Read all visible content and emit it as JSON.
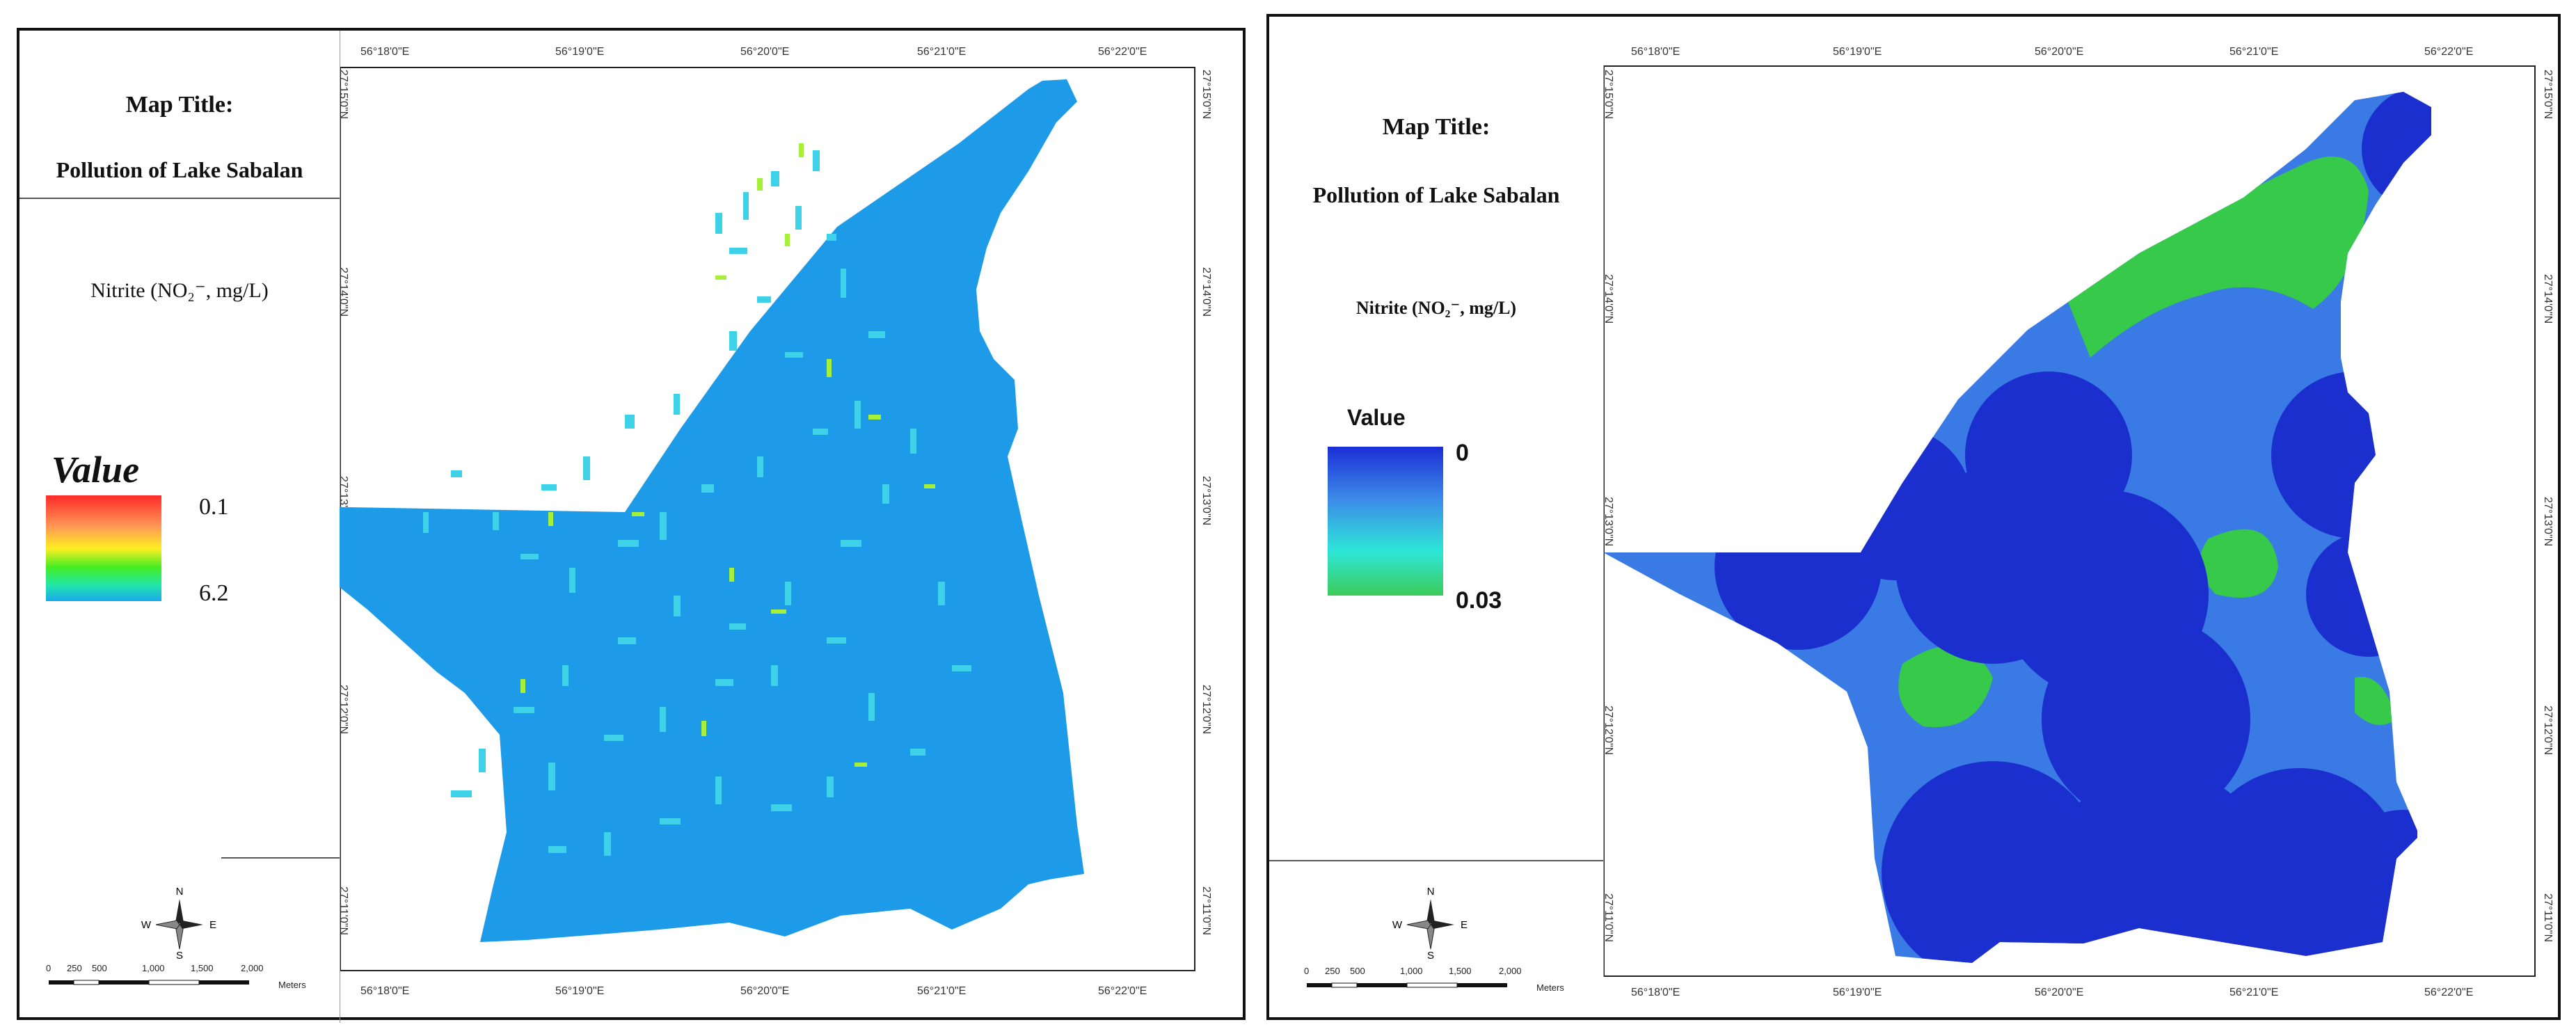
{
  "panels": [
    {
      "id": "left",
      "map_title_label": "Map Title:",
      "map_title": "Pollution of Lake Sabalan",
      "parameter": "Nitrite (NO₂⁻, mg/L)",
      "legend": {
        "heading": "Value",
        "top_value": "0.1",
        "bottom_value": "6.2",
        "ramp_colors": [
          "#ff2a2a",
          "#ff9a55",
          "#ffee22",
          "#44ee22",
          "#22e6aa",
          "#1aa8f0"
        ]
      },
      "lon_ticks_top": [
        "56°18'0\"E",
        "56°19'0\"E",
        "56°20'0\"E",
        "56°21'0\"E",
        "56°22'0\"E"
      ],
      "lon_ticks_bottom": [
        "56°18'0\"E",
        "56°19'0\"E",
        "56°20'0\"E",
        "56°21'0\"E",
        "56°22'0\"E"
      ],
      "lat_ticks_left": [
        "27°15'0\"N",
        "27°14'0\"N",
        "27°13'0\"N",
        "27°12'0\"N",
        "27°11'0\"N"
      ],
      "lat_ticks_right": [
        "27°15'0\"N",
        "27°14'0\"N",
        "27°13'0\"N",
        "27°12'0\"N",
        "27°11'0\"N"
      ],
      "compass": {
        "n": "N",
        "s": "S",
        "e": "E",
        "w": "W"
      },
      "scale": [
        "0",
        "250",
        "500",
        "1,000",
        "1,500",
        "2,000"
      ],
      "scale_unit": "Meters",
      "fill_color": "#1e9be8",
      "patch_colors": [
        "#3ed2e8",
        "#a6f03a",
        "#22c8d8"
      ]
    },
    {
      "id": "right",
      "map_title_label": "Map Title:",
      "map_title": "Pollution of Lake Sabalan",
      "parameter": "Nitrite (NO₂⁻, mg/L)",
      "legend": {
        "heading": "Value",
        "top_value": "0",
        "bottom_value": "0.03",
        "ramp_colors": [
          "#1a2ed6",
          "#3c8ae8",
          "#2ee6d8",
          "#3ccc5a"
        ]
      },
      "lon_ticks_top": [
        "56°18'0\"E",
        "56°19'0\"E",
        "56°20'0\"E",
        "56°21'0\"E",
        "56°22'0\"E"
      ],
      "lon_ticks_bottom": [
        "56°18'0\"E",
        "56°19'0\"E",
        "56°20'0\"E",
        "56°21'0\"E",
        "56°22'0\"E"
      ],
      "lat_ticks_left": [
        "27°15'0\"N",
        "27°14'0\"N",
        "27°13'0\"N",
        "27°12'0\"N",
        "27°11'0\"N"
      ],
      "lat_ticks_right": [
        "27°15'0\"N",
        "27°14'0\"N",
        "27°13'0\"N",
        "27°12'0\"N",
        "27°11'0\"N"
      ],
      "compass": {
        "n": "N",
        "s": "S",
        "e": "E",
        "w": "W"
      },
      "scale": [
        "0",
        "250",
        "500",
        "1,000",
        "1,500",
        "2,000"
      ],
      "scale_unit": "Meters",
      "zone_colors": {
        "high": "#1b2fcf",
        "mid": "#3a7ae4",
        "low": "#37c94a"
      }
    }
  ]
}
